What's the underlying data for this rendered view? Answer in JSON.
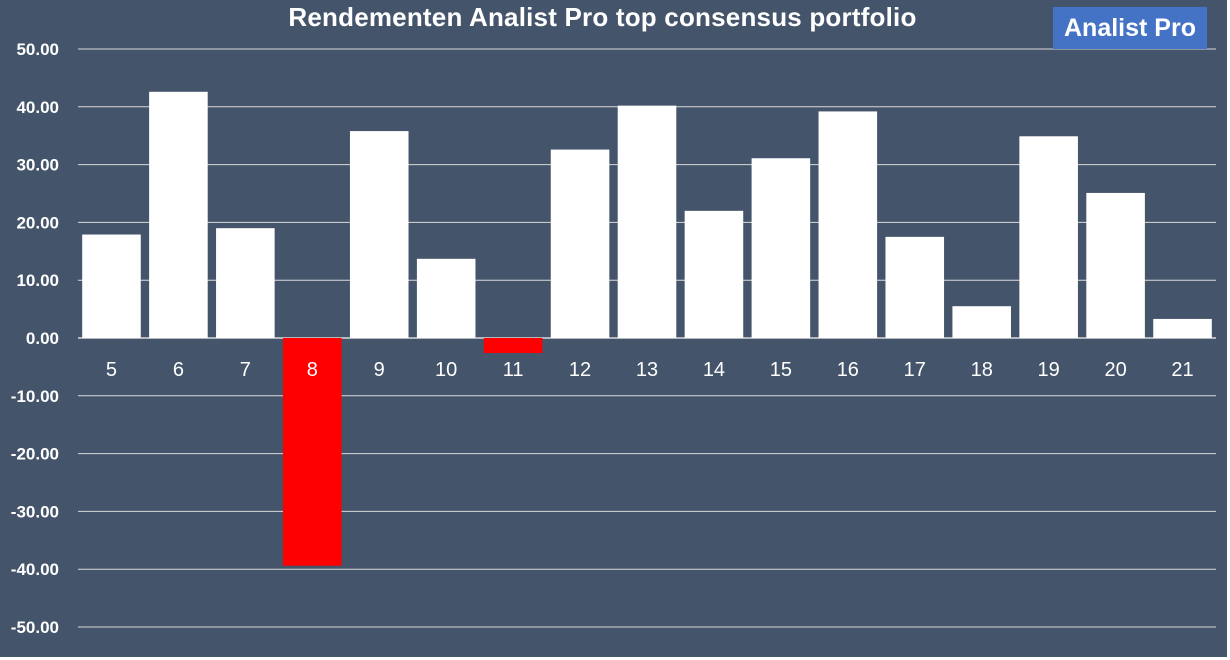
{
  "chart_data": {
    "type": "bar",
    "title": "Rendementen Analist Pro top consensus portfolio",
    "xlabel": "",
    "ylabel": "",
    "categories": [
      "5",
      "6",
      "7",
      "8",
      "9",
      "10",
      "11",
      "12",
      "13",
      "14",
      "15",
      "16",
      "17",
      "18",
      "19",
      "20",
      "21"
    ],
    "values": [
      17.9,
      42.6,
      19.0,
      -39.4,
      35.8,
      13.7,
      -2.6,
      32.6,
      40.2,
      22.0,
      31.1,
      39.2,
      17.5,
      5.5,
      34.9,
      25.1,
      3.3
    ],
    "ylim": [
      -50,
      50
    ],
    "yticks": [
      "50.00",
      "40.00",
      "30.00",
      "20.00",
      "10.00",
      "0.00",
      "-10.00",
      "-20.00",
      "-30.00",
      "-40.00",
      "-50.00"
    ],
    "ytick_values": [
      50,
      40,
      30,
      20,
      10,
      0,
      -10,
      -20,
      -30,
      -40,
      -50
    ],
    "grid": true,
    "legend": "none",
    "colors": {
      "background": "#44546a",
      "positive_bar": "#ffffff",
      "negative_bar": "#ff0000",
      "grid": "#d9d9d9",
      "text": "#ffffff"
    }
  },
  "brand": {
    "label": "Analist Pro",
    "color": "#4472c4"
  }
}
